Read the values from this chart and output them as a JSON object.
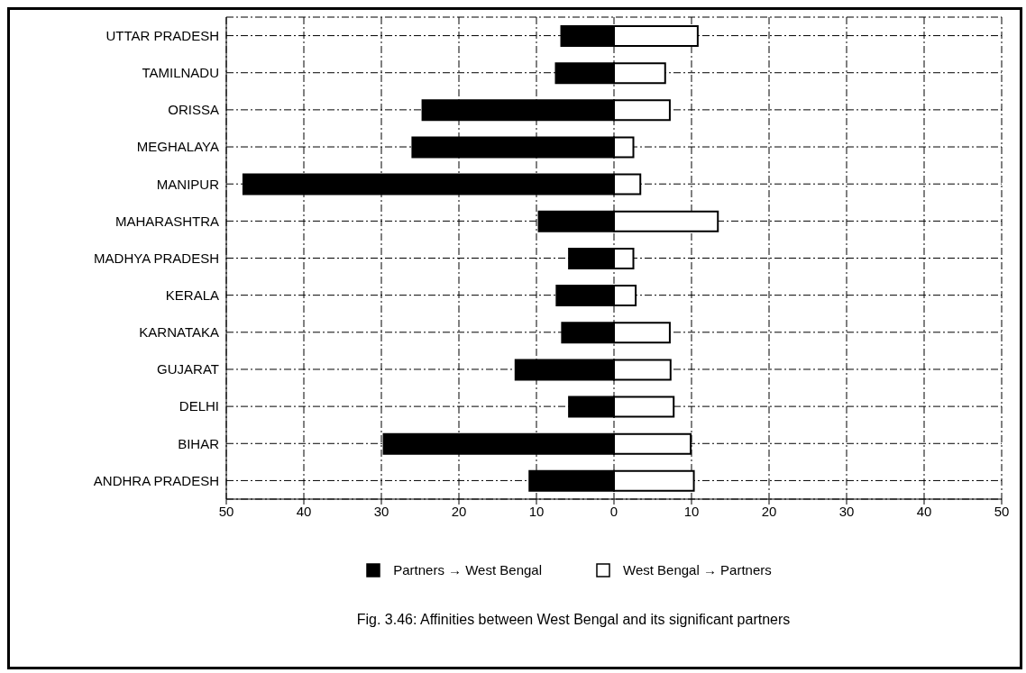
{
  "chart_data": {
    "type": "bar",
    "orientation": "horizontal",
    "stacked": true,
    "title": "Fig. 3.46: Affinities between West Bengal and its significant partners",
    "categories": [
      "UTTAR PRADESH",
      "TAMILNADU",
      "ORISSA",
      "MEGHALAYA",
      "MANIPUR",
      "MAHARASHTRA",
      "MADHYA PRADESH",
      "KERALA",
      "KARNATAKA",
      "GUJARAT",
      "DELHI",
      "BIHAR",
      "ANDHRA PRADESH"
    ],
    "series": [
      {
        "name": "Partners → West Bengal",
        "color": "#000000",
        "values": [
          -6.8,
          -7.5,
          -24.7,
          -26,
          -47.8,
          -9.7,
          -5.8,
          -7.4,
          -6.7,
          -12.7,
          -5.8,
          -29.7,
          -10.9
        ]
      },
      {
        "name": "West Bengal → Partners",
        "color": "#ffffff",
        "values": [
          10.8,
          6.6,
          7.2,
          2.5,
          3.4,
          13.4,
          2.5,
          2.8,
          7.2,
          7.3,
          7.7,
          9.9,
          10.3
        ]
      }
    ],
    "xlim": [
      -50,
      50
    ],
    "xticks": [
      {
        "value": -50,
        "label": "50"
      },
      {
        "value": -40,
        "label": "40"
      },
      {
        "value": -30,
        "label": "30"
      },
      {
        "value": -20,
        "label": "20"
      },
      {
        "value": -10,
        "label": "10"
      },
      0,
      10,
      20,
      30,
      40,
      50
    ],
    "grid": true,
    "legend": "bottom"
  }
}
